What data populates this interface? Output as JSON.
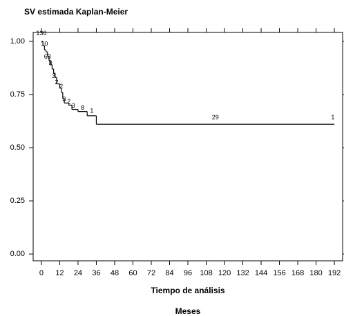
{
  "chart_data": {
    "type": "step",
    "title": "SV estimada Kaplan-Meier",
    "xlabel": "Tiempo de análisis",
    "xlabel2": "Meses",
    "x": [
      0,
      1,
      2,
      3,
      4,
      5,
      6,
      7,
      8,
      9,
      10,
      12,
      13,
      14,
      15,
      18,
      20,
      24,
      30,
      36,
      192
    ],
    "values": [
      1.0,
      0.98,
      0.96,
      0.95,
      0.93,
      0.91,
      0.89,
      0.87,
      0.85,
      0.83,
      0.8,
      0.78,
      0.76,
      0.73,
      0.71,
      0.7,
      0.68,
      0.67,
      0.65,
      0.61,
      0.61
    ],
    "color": "#000000",
    "annotations": [
      {
        "x": 0,
        "y": 1.02,
        "text": "136"
      },
      {
        "x": 2,
        "y": 0.97,
        "text": "10"
      },
      {
        "x": 4,
        "y": 0.91,
        "text": "63"
      },
      {
        "x": 6,
        "y": 0.88,
        "text": "8"
      },
      {
        "x": 8,
        "y": 0.82,
        "text": "3"
      },
      {
        "x": 10,
        "y": 0.79,
        "text": "2"
      },
      {
        "x": 13,
        "y": 0.77,
        "text": "2"
      },
      {
        "x": 15,
        "y": 0.71,
        "text": "3"
      },
      {
        "x": 18,
        "y": 0.7,
        "text": "2"
      },
      {
        "x": 21,
        "y": 0.68,
        "text": "3"
      },
      {
        "x": 27,
        "y": 0.67,
        "text": "8"
      },
      {
        "x": 33,
        "y": 0.655,
        "text": "1"
      },
      {
        "x": 114,
        "y": 0.625,
        "text": "29"
      },
      {
        "x": 191,
        "y": 0.625,
        "text": "1"
      }
    ],
    "xlim": [
      -5.4,
      197.4
    ],
    "ylim": [
      -0.032,
      1.042
    ],
    "xticks": [
      0,
      12,
      24,
      36,
      48,
      60,
      72,
      84,
      96,
      108,
      120,
      132,
      144,
      156,
      168,
      180,
      192
    ],
    "yticks": [
      {
        "value": 0,
        "label": "0.00"
      },
      {
        "value": 0.25,
        "label": "0.25"
      },
      {
        "value": 0.5,
        "label": "0.50"
      },
      {
        "value": 0.75,
        "label": "0.75"
      },
      {
        "value": 1,
        "label": "1.00"
      }
    ],
    "grid": false
  }
}
